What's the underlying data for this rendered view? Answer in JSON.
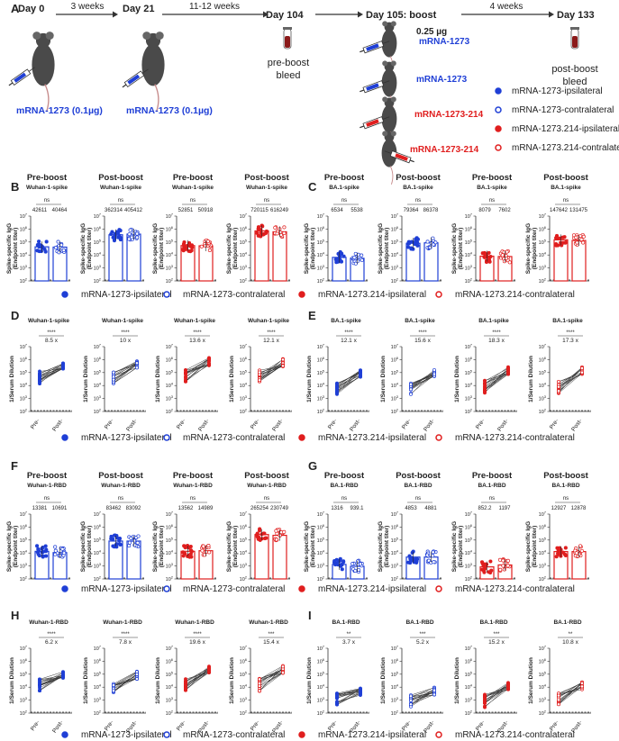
{
  "colors": {
    "blue": "#1f3fd6",
    "red": "#e01e1e",
    "text": "#222222",
    "mouse": "#4a4a4a",
    "tube": "#8b1a1a"
  },
  "timeline": {
    "panel_label": "A",
    "days": [
      "Day 0",
      "Day 21",
      "Day 104",
      "Day 105: boost",
      "Day 133"
    ],
    "intervals": [
      "3 weeks",
      "11-12 weeks",
      "4 weeks"
    ],
    "dose_labels": [
      "mRNA-1273 (0.1µg)",
      "mRNA-1273 (0.1µg)"
    ],
    "pre_bleed": "pre-boost\nbleed",
    "post_bleed": "post-boost\nbleed",
    "boost_dose": "0.25 µg",
    "boost_mice": [
      "mRNA-1273",
      "mRNA-1273",
      "mRNA-1273-214",
      "mRNA-1273-214"
    ],
    "legend": [
      "mRNA-1273-ipsilateral",
      "mRNA-1273-contralateral",
      "mRNA-1273.214-ipsilateral",
      "mRNA-1273.214-contralateral"
    ]
  },
  "legend_rows": [
    "mRNA-1273-ipsilateral",
    "mRNA-1273-contralateral",
    "mRNA-1273.214-ipsilateral",
    "mRNA-1273.214-contralateral"
  ],
  "strings": {
    "ylabel_bar": "Spike-specific IgG\n(Endpoint titer)",
    "ylabel_line": "1/Serum Dilution",
    "pre_tick": "Pre-",
    "post_tick": "Post-"
  },
  "chart_data": [
    {
      "type": "bar",
      "panel": "B",
      "title": "Pre-boost",
      "subtitle": "Wuhan-1-spike",
      "ylabel": "Spike-specific IgG (Endpoint titer)",
      "ylim": [
        100,
        10000000
      ],
      "yscale": "log",
      "sig": "ns",
      "medians": [
        42611,
        40464
      ],
      "labels": [
        "42611",
        "40464"
      ],
      "groups": [
        "ipsi",
        "contra"
      ],
      "color": "blue"
    },
    {
      "type": "bar",
      "panel": "B",
      "title": "Post-boost",
      "subtitle": "Wuhan-1-spike",
      "ylabel": "Spike-specific IgG (Endpoint titer)",
      "ylim": [
        100,
        10000000
      ],
      "yscale": "log",
      "sig": "ns",
      "medians": [
        362314,
        405412
      ],
      "labels": [
        "362314",
        "405412"
      ],
      "groups": [
        "ipsi",
        "contra"
      ],
      "color": "blue"
    },
    {
      "type": "bar",
      "panel": "B",
      "title": "Pre-boost",
      "subtitle": "Wuhan-1-spike",
      "ylabel": "Spike-specific IgG (Endpoint titer)",
      "ylim": [
        100,
        10000000
      ],
      "yscale": "log",
      "sig": "ns",
      "medians": [
        52851,
        50918
      ],
      "labels": [
        "52851",
        "50918"
      ],
      "groups": [
        "ipsi",
        "contra"
      ],
      "color": "red"
    },
    {
      "type": "bar",
      "panel": "B",
      "title": "Post-boost",
      "subtitle": "Wuhan-1-spike",
      "ylabel": "Spike-specific IgG (Endpoint titer)",
      "ylim": [
        100,
        10000000
      ],
      "yscale": "log",
      "sig": "ns",
      "medians": [
        720115,
        616249
      ],
      "labels": [
        "720115",
        "616249"
      ],
      "groups": [
        "ipsi",
        "contra"
      ],
      "color": "red"
    },
    {
      "type": "bar",
      "panel": "C",
      "title": "Pre-boost",
      "subtitle": "BA.1-spike",
      "ylabel": "Spike-specific IgG (Endpoint titer)",
      "ylim": [
        100,
        10000000
      ],
      "yscale": "log",
      "sig": "ns",
      "medians": [
        6534,
        5538
      ],
      "labels": [
        "6534",
        "5538"
      ],
      "groups": [
        "ipsi",
        "contra"
      ],
      "color": "blue"
    },
    {
      "type": "bar",
      "panel": "C",
      "title": "Post-boost",
      "subtitle": "BA.1-spike",
      "ylabel": "Spike-specific IgG (Endpoint titer)",
      "ylim": [
        100,
        10000000
      ],
      "yscale": "log",
      "sig": "ns",
      "medians": [
        79364,
        86378
      ],
      "labels": [
        "79364",
        "86378"
      ],
      "groups": [
        "ipsi",
        "contra"
      ],
      "color": "blue"
    },
    {
      "type": "bar",
      "panel": "C",
      "title": "Pre-boost",
      "subtitle": "BA.1-spike",
      "ylabel": "Spike-specific IgG (Endpoint titer)",
      "ylim": [
        100,
        10000000
      ],
      "yscale": "log",
      "sig": "ns",
      "medians": [
        8079,
        7602
      ],
      "labels": [
        "8079",
        "7602"
      ],
      "groups": [
        "ipsi",
        "contra"
      ],
      "color": "red"
    },
    {
      "type": "bar",
      "panel": "C",
      "title": "Post-boost",
      "subtitle": "BA.1-spike",
      "ylabel": "Spike-specific IgG (Endpoint titer)",
      "ylim": [
        100,
        10000000
      ],
      "yscale": "log",
      "sig": "ns",
      "medians": [
        147642,
        131475
      ],
      "labels": [
        "147642",
        "131475"
      ],
      "groups": [
        "ipsi",
        "contra"
      ],
      "color": "red"
    },
    {
      "type": "line",
      "panel": "D",
      "title": "Wuhan-1-spike",
      "sig": "****",
      "fold": "8.5 x",
      "pre": 40000,
      "post": 340000,
      "color": "blue",
      "filled": true
    },
    {
      "type": "line",
      "panel": "D",
      "title": "Wuhan-1-spike",
      "sig": "****",
      "fold": "10 x",
      "pre": 40000,
      "post": 400000,
      "color": "blue",
      "filled": false
    },
    {
      "type": "line",
      "panel": "D",
      "title": "Wuhan-1-spike",
      "sig": "****",
      "fold": "13.6 x",
      "pre": 52000,
      "post": 700000,
      "color": "red",
      "filled": true
    },
    {
      "type": "line",
      "panel": "D",
      "title": "Wuhan-1-spike",
      "sig": "****",
      "fold": "12.1 x",
      "pre": 50000,
      "post": 600000,
      "color": "red",
      "filled": false
    },
    {
      "type": "line",
      "panel": "E",
      "title": "BA.1-spike",
      "sig": "****",
      "fold": "12.1 x",
      "pre": 6500,
      "post": 79000,
      "color": "blue",
      "filled": true
    },
    {
      "type": "line",
      "panel": "E",
      "title": "BA.1-spike",
      "sig": "****",
      "fold": "15.6 x",
      "pre": 5500,
      "post": 86000,
      "color": "blue",
      "filled": false
    },
    {
      "type": "line",
      "panel": "E",
      "title": "BA.1-spike",
      "sig": "****",
      "fold": "18.3 x",
      "pre": 8000,
      "post": 147000,
      "color": "red",
      "filled": true
    },
    {
      "type": "line",
      "panel": "E",
      "title": "BA.1-spike",
      "sig": "****",
      "fold": "17.3 x",
      "pre": 7600,
      "post": 131000,
      "color": "red",
      "filled": false
    },
    {
      "type": "bar",
      "panel": "F",
      "title": "Pre-boost",
      "subtitle": "Wuhan-1-RBD",
      "ylabel": "Spike-specific IgG (Endpoint titer)",
      "ylim": [
        100,
        10000000
      ],
      "yscale": "log",
      "sig": "ns",
      "medians": [
        13381,
        10691
      ],
      "labels": [
        "13381",
        "10691"
      ],
      "groups": [
        "ipsi",
        "contra"
      ],
      "color": "blue"
    },
    {
      "type": "bar",
      "panel": "F",
      "title": "Post-boost",
      "subtitle": "Wuhan-1-RBD",
      "ylabel": "Spike-specific IgG (Endpoint titer)",
      "ylim": [
        100,
        10000000
      ],
      "yscale": "log",
      "sig": "ns",
      "medians": [
        83462,
        83092
      ],
      "labels": [
        "83462",
        "83092"
      ],
      "groups": [
        "ipsi",
        "contra"
      ],
      "color": "blue"
    },
    {
      "type": "bar",
      "panel": "F",
      "title": "Pre-boost",
      "subtitle": "Wuhan-1-RBD",
      "ylabel": "Spike-specific IgG (Endpoint titer)",
      "ylim": [
        100,
        10000000
      ],
      "yscale": "log",
      "sig": "ns",
      "medians": [
        13562,
        14989
      ],
      "labels": [
        "13562",
        "14989"
      ],
      "groups": [
        "ipsi",
        "contra"
      ],
      "color": "red"
    },
    {
      "type": "bar",
      "panel": "F",
      "title": "Post-boost",
      "subtitle": "Wuhan-1-RBD",
      "ylabel": "Spike-specific IgG (Endpoint titer)",
      "ylim": [
        100,
        10000000
      ],
      "yscale": "log",
      "sig": "ns",
      "medians": [
        265254,
        230749
      ],
      "labels": [
        "265254",
        "230749"
      ],
      "groups": [
        "ipsi",
        "contra"
      ],
      "color": "red"
    },
    {
      "type": "bar",
      "panel": "G",
      "title": "Pre-boost",
      "subtitle": "BA.1-RBD",
      "ylabel": "Spike-specific IgG (Endpoint titer)",
      "ylim": [
        100,
        10000000
      ],
      "yscale": "log",
      "sig": "ns",
      "medians": [
        1316,
        939.1
      ],
      "labels": [
        "1316",
        "939.1"
      ],
      "groups": [
        "ipsi",
        "contra"
      ],
      "color": "blue"
    },
    {
      "type": "bar",
      "panel": "G",
      "title": "Post-boost",
      "subtitle": "BA.1-RBD",
      "ylabel": "Spike-specific IgG (Endpoint titer)",
      "ylim": [
        100,
        10000000
      ],
      "yscale": "log",
      "sig": "ns",
      "medians": [
        4853,
        4881
      ],
      "labels": [
        "4853",
        "4881"
      ],
      "groups": [
        "ipsi",
        "contra"
      ],
      "color": "blue"
    },
    {
      "type": "bar",
      "panel": "G",
      "title": "Pre-boost",
      "subtitle": "BA.1-RBD",
      "ylabel": "Spike-specific IgG (Endpoint titer)",
      "ylim": [
        100,
        10000000
      ],
      "yscale": "log",
      "sig": "ns",
      "medians": [
        852.2,
        1197
      ],
      "labels": [
        "852.2",
        "1197"
      ],
      "groups": [
        "ipsi",
        "contra"
      ],
      "color": "red"
    },
    {
      "type": "bar",
      "panel": "G",
      "title": "Post-boost",
      "subtitle": "BA.1-RBD",
      "ylabel": "Spike-specific IgG (Endpoint titer)",
      "ylim": [
        100,
        10000000
      ],
      "yscale": "log",
      "sig": "ns",
      "medians": [
        12927,
        12878
      ],
      "labels": [
        "12927",
        "12878"
      ],
      "groups": [
        "ipsi",
        "contra"
      ],
      "color": "red"
    },
    {
      "type": "line",
      "panel": "H",
      "title": "Wuhan-1-RBD",
      "sig": "****",
      "fold": "6.2 x",
      "pre": 13000,
      "post": 83000,
      "color": "blue",
      "filled": true
    },
    {
      "type": "line",
      "panel": "H",
      "title": "Wuhan-1-RBD",
      "sig": "****",
      "fold": "7.8 x",
      "pre": 11000,
      "post": 83000,
      "color": "blue",
      "filled": false
    },
    {
      "type": "line",
      "panel": "H",
      "title": "Wuhan-1-RBD",
      "sig": "****",
      "fold": "19.6 x",
      "pre": 13500,
      "post": 265000,
      "color": "red",
      "filled": true
    },
    {
      "type": "line",
      "panel": "H",
      "title": "Wuhan-1-RBD",
      "sig": "***",
      "fold": "15.4 x",
      "pre": 15000,
      "post": 230000,
      "color": "red",
      "filled": false
    },
    {
      "type": "line",
      "panel": "I",
      "title": "BA.1-RBD",
      "sig": "**",
      "fold": "3.7 x",
      "pre": 1300,
      "post": 4850,
      "color": "blue",
      "filled": true
    },
    {
      "type": "line",
      "panel": "I",
      "title": "BA.1-RBD",
      "sig": "***",
      "fold": "5.2 x",
      "pre": 940,
      "post": 4880,
      "color": "blue",
      "filled": false
    },
    {
      "type": "line",
      "panel": "I",
      "title": "BA.1-RBD",
      "sig": "***",
      "fold": "15.2 x",
      "pre": 850,
      "post": 12900,
      "color": "red",
      "filled": true
    },
    {
      "type": "line",
      "panel": "I",
      "title": "BA.1-RBD",
      "sig": "**",
      "fold": "10.8 x",
      "pre": 1200,
      "post": 12900,
      "color": "red",
      "filled": false
    }
  ]
}
